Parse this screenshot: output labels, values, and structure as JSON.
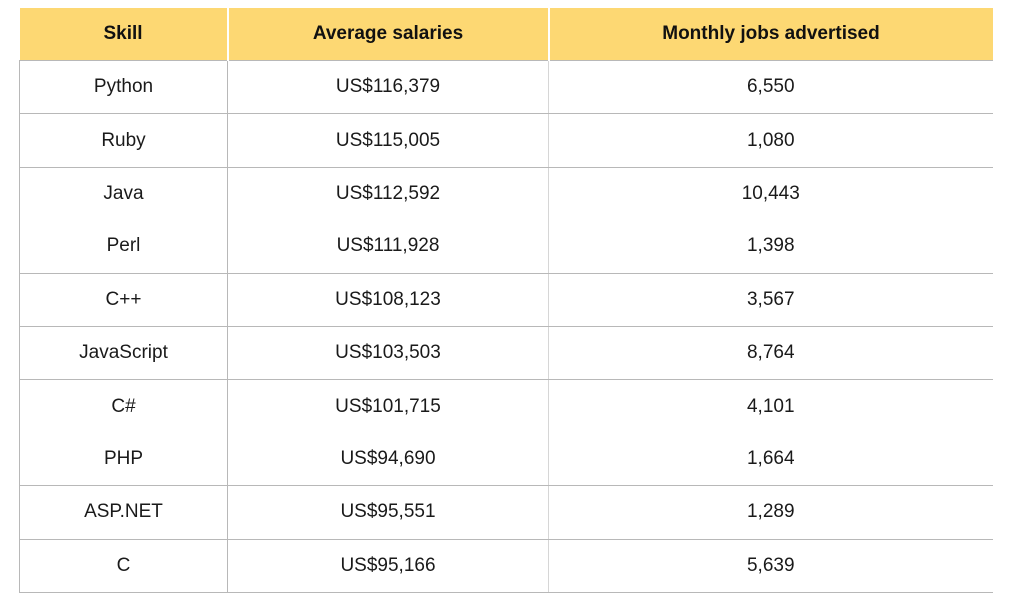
{
  "table": {
    "headers": [
      "Skill",
      "Average salaries",
      "Monthly jobs advertised"
    ],
    "colors": {
      "header_bg": "#fdd873",
      "rule": "#b8b8b8"
    },
    "rows": [
      {
        "skill": "Python",
        "salary": "US$116,379",
        "jobs": "6,550",
        "divider_below": true
      },
      {
        "skill": "Ruby",
        "salary": "US$115,005",
        "jobs": "1,080",
        "divider_below": true
      },
      {
        "skill": "Java",
        "salary": "US$112,592",
        "jobs": "10,443",
        "divider_below": false
      },
      {
        "skill": "Perl",
        "salary": "US$111,928",
        "jobs": "1,398",
        "divider_below": true
      },
      {
        "skill": "C++",
        "salary": "US$108,123",
        "jobs": "3,567",
        "divider_below": true
      },
      {
        "skill": "JavaScript",
        "salary": "US$103,503",
        "jobs": "8,764",
        "divider_below": true
      },
      {
        "skill": "C#",
        "salary": "US$101,715",
        "jobs": "4,101",
        "divider_below": false
      },
      {
        "skill": "PHP",
        "salary": "US$94,690",
        "jobs": "1,664",
        "divider_below": true
      },
      {
        "skill": "ASP.NET",
        "salary": "US$95,551",
        "jobs": "1,289",
        "divider_below": true
      },
      {
        "skill": "C",
        "salary": "US$95,166",
        "jobs": "5,639",
        "divider_below": true
      }
    ]
  }
}
